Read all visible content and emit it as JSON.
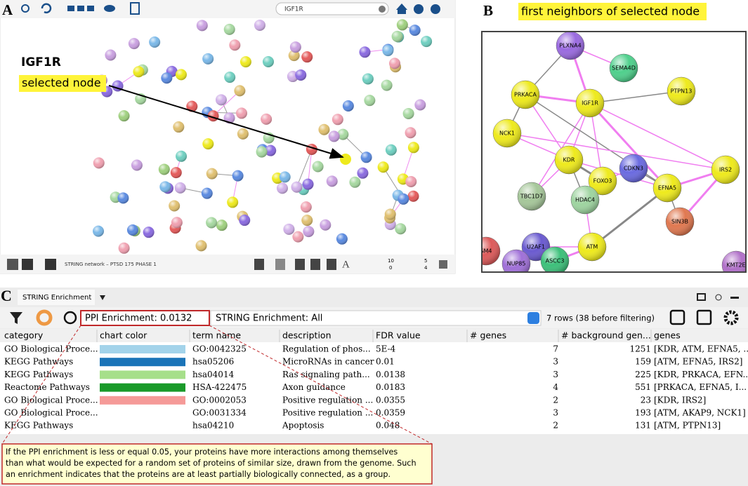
{
  "panel_a": {
    "label": "A",
    "search_text": "IGF1R",
    "callout_node": "IGF1R",
    "callout_text": "selected node",
    "network_name": "STRING network – PTSD 175 PHASE 1",
    "status_numbers": [
      "10",
      "0",
      "5",
      "4"
    ]
  },
  "panel_b": {
    "label": "B",
    "title": "first neighbors of selected node",
    "nodes": [
      {
        "label": "PLXNA4",
        "color": "#9a6ae0"
      },
      {
        "label": "SEMA4D",
        "color": "#4fd08c"
      },
      {
        "label": "PTPN13",
        "color": "#eeea1c"
      },
      {
        "label": "PRKACA",
        "color": "#eeea1c"
      },
      {
        "label": "IGF1R",
        "color": "#eeea1c"
      },
      {
        "label": "NCK1",
        "color": "#eeea1c"
      },
      {
        "label": "KDR",
        "color": "#eeea1c"
      },
      {
        "label": "FOXO3",
        "color": "#eeea1c"
      },
      {
        "label": "CDKN3",
        "color": "#6a6ae0"
      },
      {
        "label": "EFNA5",
        "color": "#eeea1c"
      },
      {
        "label": "IRS2",
        "color": "#eeea1c"
      },
      {
        "label": "TBC1D7",
        "color": "#a6c79a"
      },
      {
        "label": "HDAC4",
        "color": "#9ed4a0"
      },
      {
        "label": "SIN3B",
        "color": "#e07850"
      },
      {
        "label": "U2AF1",
        "color": "#6a5ad0"
      },
      {
        "label": "ATM",
        "color": "#eeea1c"
      },
      {
        "label": "ASCC3",
        "color": "#3cc07a"
      },
      {
        "label": "SM4",
        "color": "#dd5a5a"
      },
      {
        "label": "NUP85",
        "color": "#a070d8"
      },
      {
        "label": "KMT2E",
        "color": "#b070c8"
      }
    ]
  },
  "panel_c": {
    "label": "C",
    "tab_title": "STRING Enrichment",
    "ppi_enrichment": "PPI Enrichment: 0.0132",
    "filter_label": "STRING Enrichment: All",
    "row_count": "7 rows (38 before filtering)",
    "table": {
      "columns": [
        "category",
        "chart color",
        "term name",
        "description",
        "FDR value",
        "# genes",
        "# background gen...",
        "genes"
      ],
      "rows": [
        {
          "cells": [
            "GO Biological Proce...",
            "GO:0042325",
            "Regulation of phos...",
            "5E-4",
            "7",
            "1251",
            "[KDR, ATM, EFNA5, ..."
          ],
          "chart_color": "#a3d3ea"
        },
        {
          "cells": [
            "KEGG Pathways",
            "hsa05206",
            "MicroRNAs in cancer",
            "0.01",
            "3",
            "159",
            "[ATM, EFNA5, IRS2]"
          ],
          "chart_color": "#1a74b8"
        },
        {
          "cells": [
            "KEGG Pathways",
            "hsa04014",
            "Ras signaling path...",
            "0.0138",
            "3",
            "225",
            "[KDR, PRKACA, EFN..."
          ],
          "chart_color": "#a6df8a"
        },
        {
          "cells": [
            "Reactome Pathways",
            "HSA-422475",
            "Axon guidance",
            "0.0183",
            "4",
            "551",
            "[PRKACA, EFNA5, I..."
          ],
          "chart_color": "#1a9a2a"
        },
        {
          "cells": [
            "GO Biological Proce...",
            "GO:0002053",
            "Positive regulation ...",
            "0.0355",
            "2",
            "23",
            "[KDR, IRS2]"
          ],
          "chart_color": "#f59a98"
        },
        {
          "cells": [
            "GO Biological Proce...",
            "GO:0031334",
            "Positive regulation ...",
            "0.0359",
            "3",
            "193",
            "[ATM, AKAP9, NCK1]"
          ],
          "chart_color": null
        },
        {
          "cells": [
            "KEGG Pathways",
            "hsa04210",
            "Apoptosis",
            "0.048",
            "2",
            "131",
            "[ATM, PTPN13]"
          ],
          "chart_color": null
        }
      ]
    },
    "note": [
      "If the PPI enrichment is less or equal 0.05, your proteins have more interactions among themselves",
      "than what would be expected for a random set of proteins of similar size, drawn from the genome. Such",
      "an enrichment indicates that the proteins are at least partially biologically connected, as a group."
    ]
  }
}
